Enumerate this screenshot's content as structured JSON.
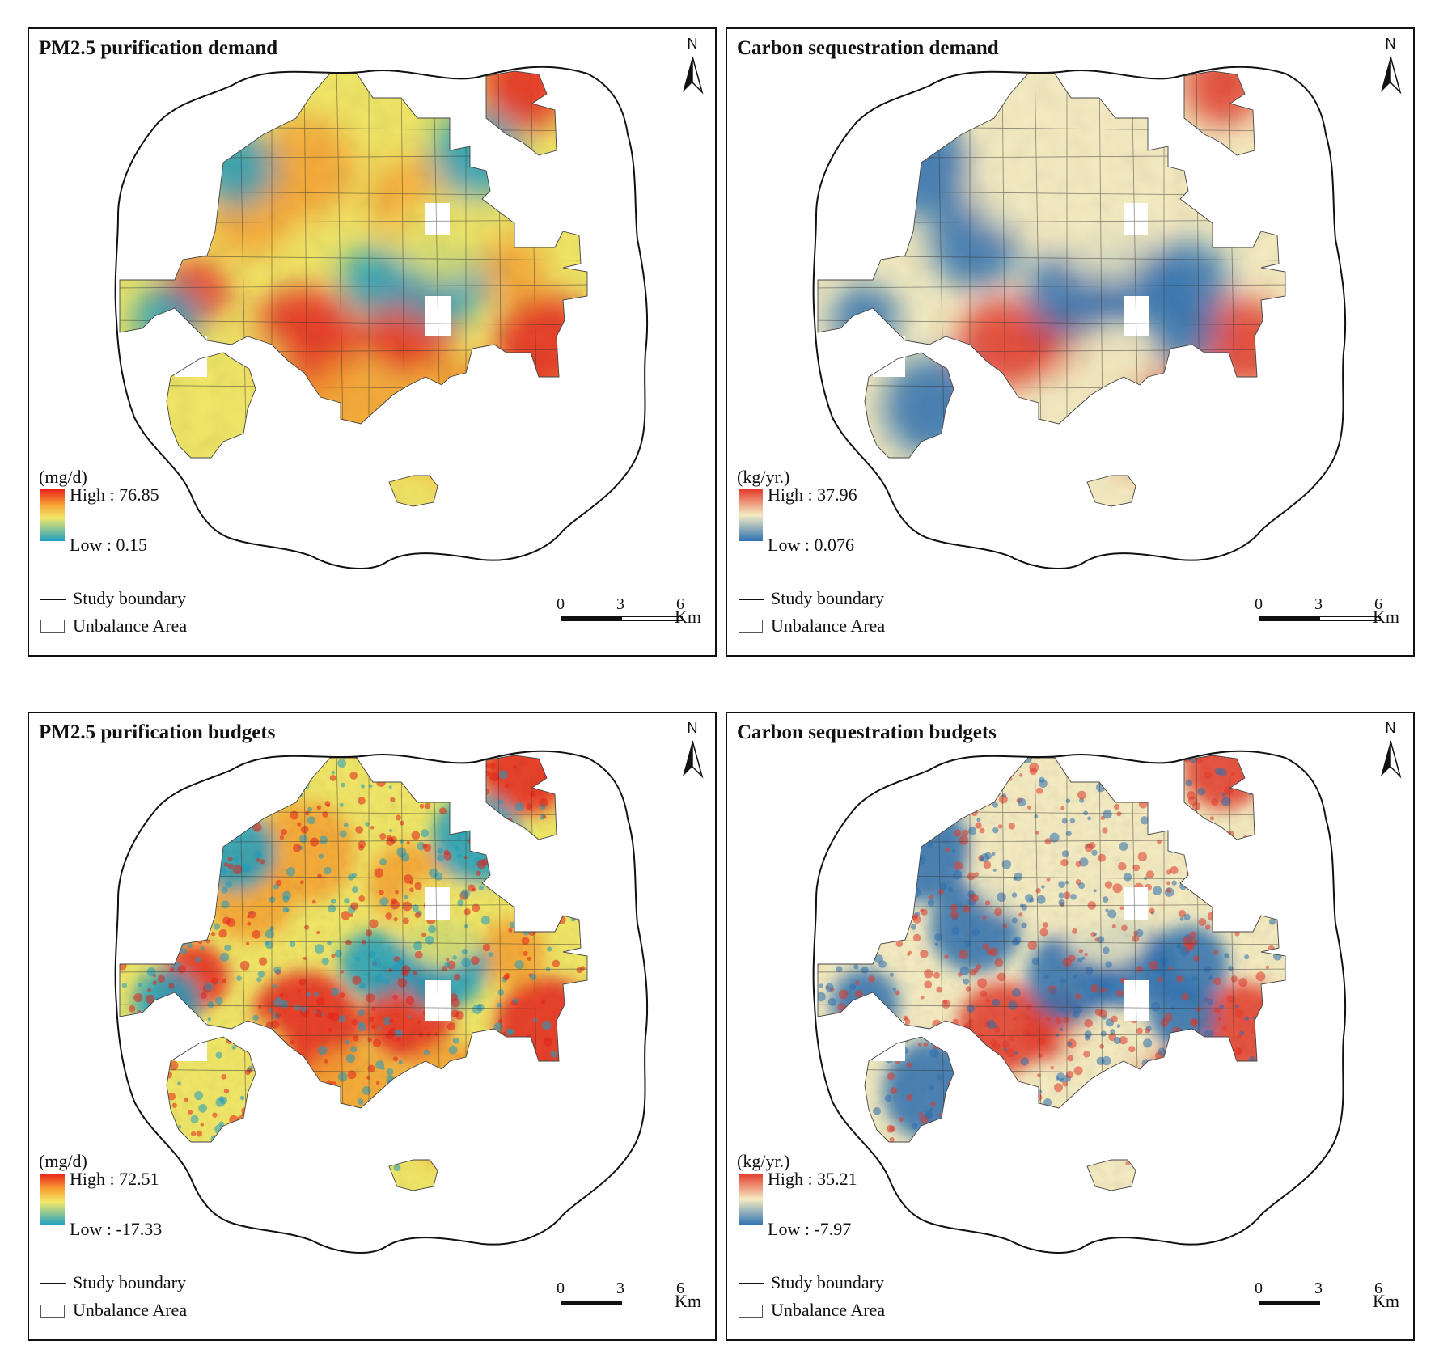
{
  "figure": {
    "panels": [
      {
        "id": "pm25-demand",
        "title": "PM2.5 purification demand",
        "unit": "(mg/d)",
        "high_label": "High : 76.85",
        "low_label": "Low : 0.15",
        "ramp": "turbo",
        "legend_boundary": "Study boundary",
        "legend_area": "Unbalance Area",
        "north": "N",
        "scale_ticks": [
          "0",
          "3",
          "6"
        ],
        "scale_unit": "Km"
      },
      {
        "id": "carbon-demand",
        "title": "Carbon sequestration demand",
        "unit": "(kg/yr.)",
        "high_label": "High : 37.96",
        "low_label": "Low : 0.076",
        "ramp": "diverging",
        "legend_boundary": "Study boundary",
        "legend_area": "Unbalance Area",
        "north": "N",
        "scale_ticks": [
          "0",
          "3",
          "6"
        ],
        "scale_unit": "Km"
      },
      {
        "id": "pm25-budgets",
        "title": "PM2.5 purification budgets",
        "unit": "(mg/d)",
        "high_label": "High : 72.51",
        "low_label": "Low : -17.33",
        "ramp": "turbo",
        "legend_boundary": "Study boundary",
        "legend_area": "Unbalance Area",
        "north": "N",
        "scale_ticks": [
          "0",
          "3",
          "6"
        ],
        "scale_unit": "Km"
      },
      {
        "id": "carbon-budgets",
        "title": "Carbon sequestration budgets",
        "unit": "(kg/yr.)",
        "high_label": "High : 35.21",
        "low_label": "Low : -7.97",
        "ramp": "diverging",
        "legend_boundary": "Study boundary",
        "legend_area": "Unbalance Area",
        "north": "N",
        "scale_ticks": [
          "0",
          "3",
          "6"
        ],
        "scale_unit": "Km"
      }
    ],
    "colors": {
      "turbo_high": "#e8231c",
      "turbo_mid1": "#f7a234",
      "turbo_mid2": "#f1e768",
      "turbo_low": "#1f9fc2",
      "div_high": "#e43b2c",
      "div_mid": "#f5ecc2",
      "div_low": "#2e71b2",
      "boundary": "#111111"
    }
  }
}
